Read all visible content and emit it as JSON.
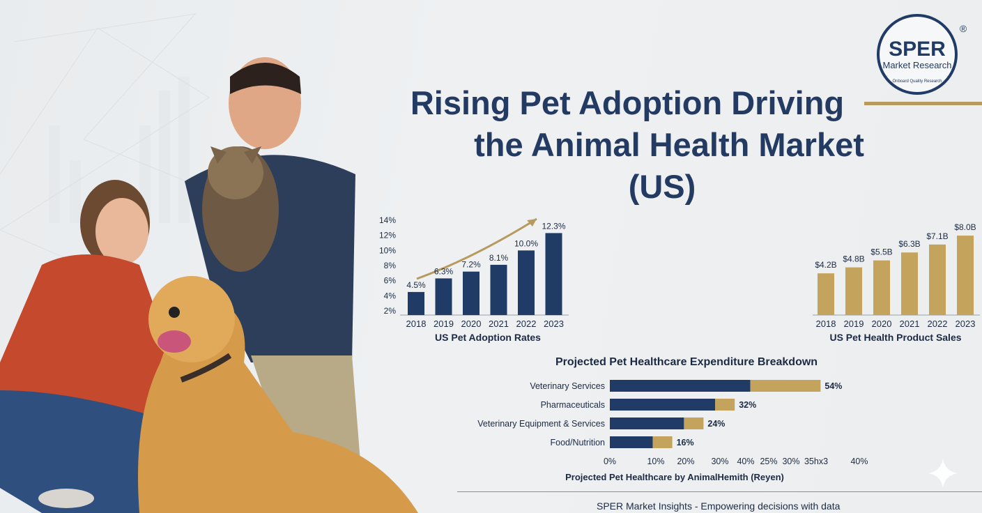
{
  "title": {
    "line1": "Rising Pet Adoption Driving",
    "line2": "the Animal Health Market",
    "line3": "(US)"
  },
  "logo": {
    "brand": "SPER",
    "sub": "Market Research",
    "tagline": "Onboard Quality Research",
    "mark": "®"
  },
  "colors": {
    "navy": "#1f3b66",
    "gold": "#c4a45c",
    "title": "#233a63"
  },
  "footer": "SPER Market Insights - Empowering decisions with data",
  "chart_data": [
    {
      "type": "bar",
      "title": "US Pet Adoption Rates",
      "categories": [
        "2018",
        "2019",
        "2020",
        "2021",
        "2022",
        "2023"
      ],
      "values": [
        4.5,
        6.3,
        7.2,
        8.1,
        10.0,
        12.3
      ],
      "value_labels": [
        "4.5%",
        "6.3%",
        "7.2%",
        "8.1%",
        "10.0%",
        "12.3%"
      ],
      "ylim": [
        2,
        14
      ],
      "yticks": [
        "2%",
        "4%",
        "6%",
        "8%",
        "10%",
        "12%",
        "14%"
      ],
      "trend_arrow": true,
      "color": "#1f3b66"
    },
    {
      "type": "bar",
      "title": "US Pet Health Product Sales",
      "categories": [
        "2018",
        "2019",
        "2020",
        "2021",
        "2022",
        "2023"
      ],
      "values": [
        4.2,
        4.8,
        5.5,
        6.3,
        7.1,
        8.0
      ],
      "value_labels": [
        "$4.2B",
        "$4.8B",
        "$5.5B",
        "$6.3B",
        "$7.1B",
        "$8.0B"
      ],
      "ylim": [
        0,
        8.0
      ],
      "color": "#c4a45c"
    },
    {
      "type": "bar",
      "orientation": "horizontal",
      "title": "Projected Pet Healthcare Expenditure Breakdown",
      "xlabel": "Projected Pet Healthcare by AnimalHemith (Reyen)",
      "categories": [
        "Veterinary Services",
        "Pharmaceuticals",
        "Veterinary Equipment & Services",
        "Food/Nutrition"
      ],
      "values": [
        54,
        32,
        24,
        16
      ],
      "value_labels": [
        "54%",
        "32%",
        "24%",
        "16%"
      ],
      "navy_part": [
        36,
        27,
        19,
        11
      ],
      "gold_part": [
        18,
        5,
        5,
        5
      ],
      "xticks": [
        "0%",
        "10%",
        "20%",
        "30%",
        "40%",
        "25%",
        "30%",
        "35hx3",
        "40%"
      ],
      "xlim": [
        0,
        60
      ]
    }
  ]
}
